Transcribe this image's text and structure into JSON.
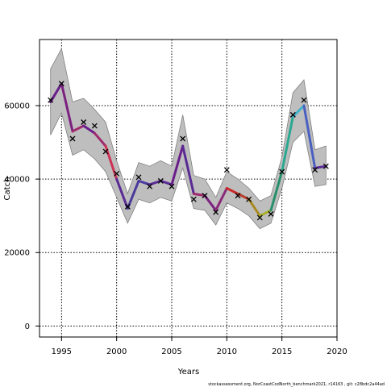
{
  "chart_data": {
    "type": "line",
    "title": "",
    "xlabel": "Years",
    "ylabel": "Catch",
    "xlim": [
      1993,
      2020
    ],
    "ylim": [
      -3000,
      78000
    ],
    "x_ticks": [
      1995,
      2000,
      2005,
      2010,
      2015,
      2020
    ],
    "y_ticks": [
      0,
      20000,
      40000,
      60000
    ],
    "x_tick_labels": [
      "1995",
      "2000",
      "2005",
      "2010",
      "2015",
      "2020"
    ],
    "y_tick_labels": [
      "0",
      "20000",
      "40000",
      "60000"
    ],
    "grid": true,
    "grid_style": "dotted",
    "band": {
      "x": [
        1994,
        1995,
        1996,
        1997,
        1998,
        1999,
        2000,
        2001,
        2002,
        2003,
        2004,
        2005,
        2006,
        2007,
        2008,
        2009,
        2010,
        2011,
        2012,
        2013,
        2014,
        2015,
        2016,
        2017,
        2018,
        2019
      ],
      "upper": [
        70000,
        75500,
        61000,
        62000,
        59000,
        55500,
        45000,
        36000,
        44500,
        43500,
        45000,
        43500,
        57500,
        41000,
        40000,
        35000,
        42000,
        40000,
        37500,
        34000,
        35500,
        46000,
        63500,
        67000,
        48000,
        49000
      ],
      "lower": [
        52000,
        58000,
        46500,
        48000,
        45500,
        42000,
        35000,
        28000,
        34500,
        33500,
        35000,
        34000,
        43000,
        32000,
        31500,
        27500,
        33500,
        32000,
        30000,
        26500,
        28000,
        37500,
        50000,
        53000,
        38000,
        38500
      ]
    },
    "series": [
      {
        "x": [
          1994,
          1995,
          1996,
          1997,
          1998,
          1999,
          2000,
          2001,
          2002,
          2003,
          2004,
          2005,
          2006,
          2007,
          2008,
          2009,
          2010,
          2011,
          2012,
          2013,
          2014,
          2015,
          2016,
          2017,
          2018,
          2019
        ],
        "values": [
          61000,
          66000,
          53000,
          54500,
          52500,
          49000,
          40000,
          32000,
          39500,
          38500,
          39500,
          38500,
          49000,
          36000,
          35500,
          31500,
          37500,
          36000,
          34500,
          30000,
          31500,
          42000,
          57000,
          60000,
          43000,
          43500
        ]
      }
    ],
    "line_colors": [
      "#6a1e8a",
      "#7b2281",
      "#a02a6e",
      "#6a1e8a",
      "#a02a6e",
      "#cc3355",
      "#5a2a95",
      "#4a3a9a",
      "#4a3aa0",
      "#5a2a95",
      "#5a2a95",
      "#6a1e8a",
      "#5a2a95",
      "#a02a6e",
      "#7b2281",
      "#8a2a78",
      "#cc2a2a",
      "#b83a28",
      "#a88a20",
      "#a8b028",
      "#26906a",
      "#2aa890",
      "#40b0c8",
      "#4a60c0",
      "#5a2a95"
    ],
    "band_color": "#bebebe",
    "band_edge_color": "#808080",
    "points": {
      "x": [
        1994,
        1995,
        1996,
        1997,
        1998,
        1999,
        2000,
        2001,
        2002,
        2003,
        2004,
        2005,
        2006,
        2007,
        2008,
        2009,
        2010,
        2011,
        2012,
        2013,
        2014,
        2015,
        2016,
        2017,
        2018,
        2019
      ],
      "values": [
        61500,
        66000,
        51000,
        55500,
        54500,
        47500,
        41500,
        32500,
        40500,
        38000,
        39500,
        38000,
        51000,
        34500,
        35500,
        31000,
        42500,
        35500,
        34500,
        29500,
        30500,
        42000,
        57500,
        61500,
        42500,
        43500
      ],
      "marker": "x"
    }
  },
  "footnote": "stockassessment.org, NorCoastCodNorth_benchmark2021, r14163 , git: c28bdc2a44ad"
}
